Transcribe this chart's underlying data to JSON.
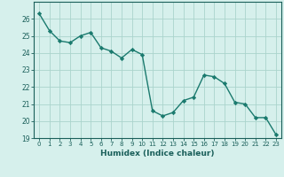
{
  "x": [
    0,
    1,
    2,
    3,
    4,
    5,
    6,
    7,
    8,
    9,
    10,
    11,
    12,
    13,
    14,
    15,
    16,
    17,
    18,
    19,
    20,
    21,
    22,
    23
  ],
  "y": [
    26.3,
    25.3,
    24.7,
    24.6,
    25.0,
    25.2,
    24.3,
    24.1,
    23.7,
    24.2,
    23.9,
    20.6,
    20.3,
    20.5,
    21.2,
    21.4,
    22.7,
    22.6,
    22.2,
    21.1,
    21.0,
    20.2,
    20.2,
    19.2
  ],
  "xlabel": "Humidex (Indice chaleur)",
  "ylim": [
    19,
    27
  ],
  "xlim": [
    -0.5,
    23.5
  ],
  "line_color": "#1a7a6e",
  "marker_color": "#1a7a6e",
  "bg_color": "#d6f0ec",
  "grid_color_major": "#aad4cc",
  "grid_color_minor": "#c8e8e4",
  "tick_color": "#1a5f5a",
  "yticks": [
    19,
    20,
    21,
    22,
    23,
    24,
    25,
    26
  ],
  "xticks": [
    0,
    1,
    2,
    3,
    4,
    5,
    6,
    7,
    8,
    9,
    10,
    11,
    12,
    13,
    14,
    15,
    16,
    17,
    18,
    19,
    20,
    21,
    22,
    23
  ]
}
